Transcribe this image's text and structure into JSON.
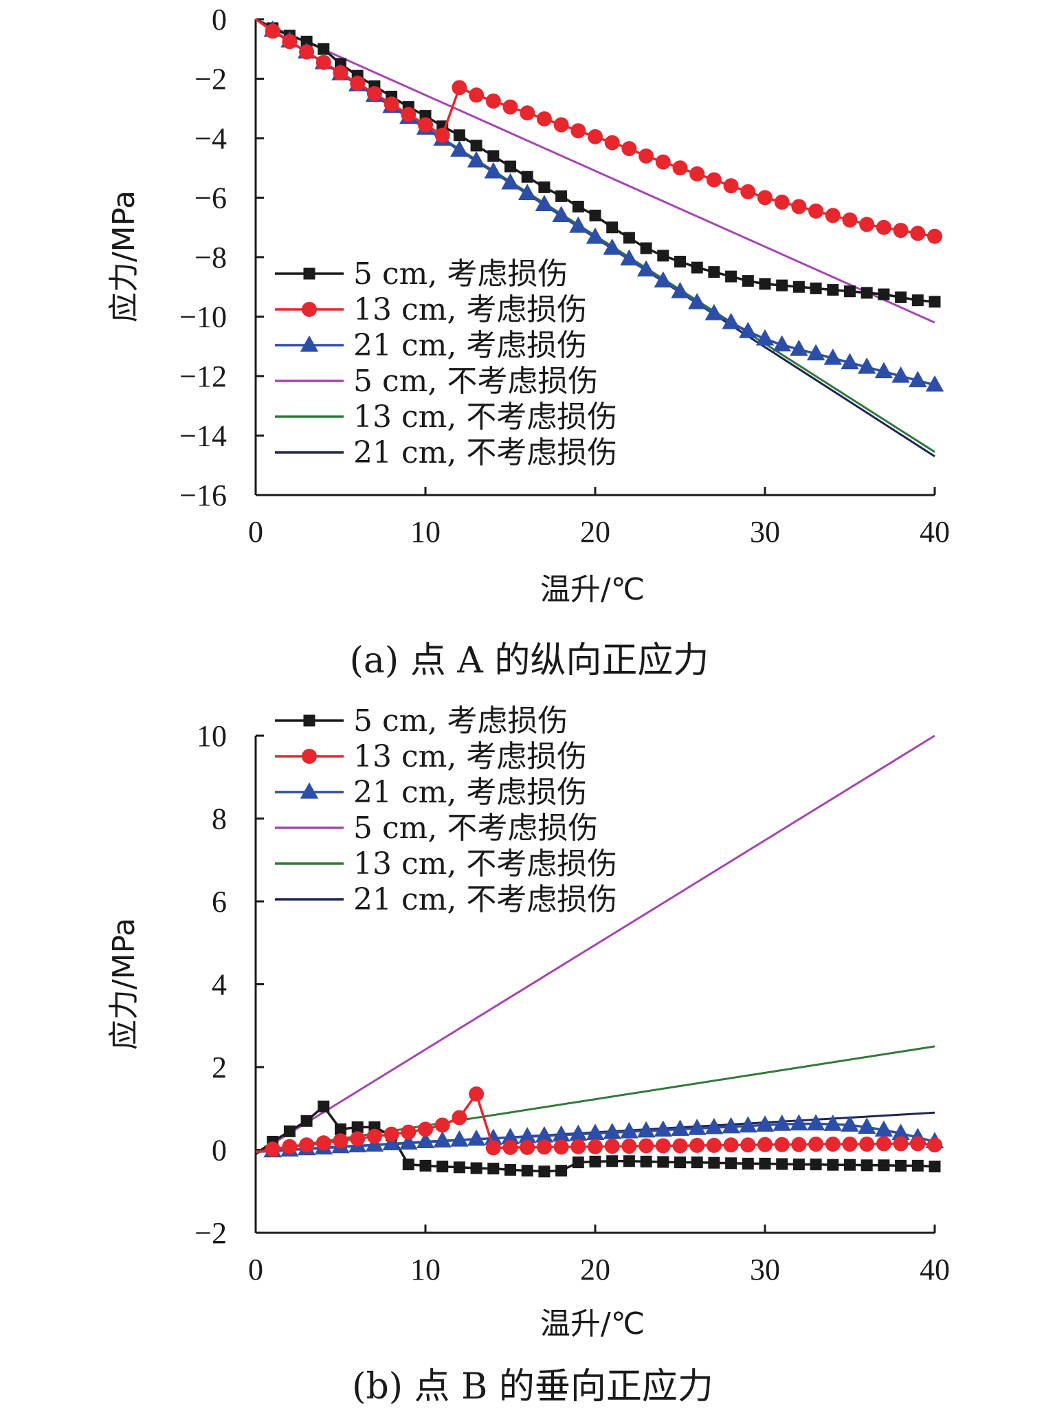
{
  "colors": {
    "s5_damage": "#1a1a1a",
    "s13_damage": "#e8262e",
    "s21_damage": "#2d4ea8",
    "s5_nodamage": "#a545b3",
    "s13_nodamage": "#2f7a3a",
    "s21_nodamage": "#1f2456"
  },
  "chart_data": [
    {
      "type": "line",
      "caption": "(a) 点 A 的纵向正应力",
      "xlabel": "温升/℃",
      "ylabel": "应力/MPa",
      "xlim": [
        0,
        40
      ],
      "ylim": [
        -16,
        0
      ],
      "xticks": [
        0,
        10,
        20,
        30,
        40
      ],
      "yticks": [
        0,
        -2,
        -4,
        -6,
        -8,
        -10,
        -12,
        -14,
        -16
      ],
      "xtick_labels": [
        "0",
        "10",
        "20",
        "30",
        "40"
      ],
      "ytick_labels": [
        "0",
        "−2",
        "−4",
        "−6",
        "−8",
        "−10",
        "−12",
        "−14",
        "−16"
      ],
      "legend_position": "bottom-left",
      "series": [
        {
          "name": "5 cm, 考虑损伤",
          "color_key": "s5_damage",
          "marker": "square",
          "x": [
            0,
            1,
            2,
            3,
            4,
            5,
            6,
            7,
            8,
            9,
            10,
            11,
            12,
            13,
            14,
            15,
            16,
            17,
            18,
            19,
            20,
            21,
            22,
            23,
            24,
            25,
            26,
            27,
            28,
            29,
            30,
            31,
            32,
            33,
            34,
            35,
            36,
            37,
            38,
            39,
            40
          ],
          "y": [
            0,
            -0.3,
            -0.55,
            -0.75,
            -1.0,
            -1.5,
            -1.9,
            -2.25,
            -2.6,
            -2.95,
            -3.25,
            -3.6,
            -3.9,
            -4.25,
            -4.6,
            -4.95,
            -5.3,
            -5.65,
            -5.95,
            -6.3,
            -6.6,
            -7.0,
            -7.35,
            -7.7,
            -7.95,
            -8.15,
            -8.35,
            -8.5,
            -8.65,
            -8.8,
            -8.9,
            -8.95,
            -9.0,
            -9.05,
            -9.1,
            -9.15,
            -9.2,
            -9.25,
            -9.35,
            -9.45,
            -9.5
          ]
        },
        {
          "name": "13 cm, 考虑损伤",
          "color_key": "s13_damage",
          "marker": "circle",
          "x": [
            0,
            1,
            2,
            3,
            4,
            5,
            6,
            7,
            8,
            9,
            10,
            11,
            12,
            13,
            14,
            15,
            16,
            17,
            18,
            19,
            20,
            21,
            22,
            23,
            24,
            25,
            26,
            27,
            28,
            29,
            30,
            31,
            32,
            33,
            34,
            35,
            36,
            37,
            38,
            39,
            40
          ],
          "y": [
            0,
            -0.4,
            -0.75,
            -1.1,
            -1.45,
            -1.8,
            -2.15,
            -2.5,
            -2.85,
            -3.2,
            -3.55,
            -3.9,
            -2.3,
            -2.55,
            -2.75,
            -2.95,
            -3.15,
            -3.35,
            -3.55,
            -3.75,
            -3.95,
            -4.15,
            -4.35,
            -4.6,
            -4.8,
            -5.0,
            -5.2,
            -5.4,
            -5.6,
            -5.8,
            -6.0,
            -6.15,
            -6.3,
            -6.45,
            -6.6,
            -6.75,
            -6.9,
            -7.0,
            -7.1,
            -7.2,
            -7.3
          ]
        },
        {
          "name": "21 cm, 考虑损伤",
          "color_key": "s21_damage",
          "marker": "triangle",
          "x": [
            0,
            1,
            2,
            3,
            4,
            5,
            6,
            7,
            8,
            9,
            10,
            11,
            12,
            13,
            14,
            15,
            16,
            17,
            18,
            19,
            20,
            21,
            22,
            23,
            24,
            25,
            26,
            27,
            28,
            29,
            30,
            31,
            32,
            33,
            34,
            35,
            36,
            37,
            38,
            39,
            40
          ],
          "y": [
            0,
            -0.37,
            -0.73,
            -1.1,
            -1.46,
            -1.83,
            -2.2,
            -2.56,
            -2.93,
            -3.3,
            -3.66,
            -4.03,
            -4.4,
            -4.76,
            -5.13,
            -5.5,
            -5.86,
            -6.23,
            -6.6,
            -6.96,
            -7.33,
            -7.7,
            -8.06,
            -8.43,
            -8.8,
            -9.16,
            -9.53,
            -9.9,
            -10.2,
            -10.5,
            -10.75,
            -10.95,
            -11.1,
            -11.25,
            -11.4,
            -11.55,
            -11.7,
            -11.85,
            -12.0,
            -12.15,
            -12.3
          ]
        },
        {
          "name": "5 cm, 不考虑损伤",
          "color_key": "s5_nodamage",
          "marker": "none",
          "x": [
            0,
            40
          ],
          "y": [
            0,
            -10.2
          ]
        },
        {
          "name": "13 cm, 不考虑损伤",
          "color_key": "s13_nodamage",
          "marker": "none",
          "x": [
            0,
            40
          ],
          "y": [
            0,
            -14.55
          ]
        },
        {
          "name": "21 cm, 不考虑损伤",
          "color_key": "s21_nodamage",
          "marker": "none",
          "x": [
            0,
            40
          ],
          "y": [
            0,
            -14.7
          ]
        }
      ]
    },
    {
      "type": "line",
      "caption": "(b) 点 B 的垂向正应力",
      "xlabel": "温升/℃",
      "ylabel": "应力/MPa",
      "xlim": [
        0,
        40
      ],
      "ylim": [
        -2,
        10
      ],
      "xticks": [
        0,
        10,
        20,
        30,
        40
      ],
      "yticks": [
        10,
        8,
        6,
        4,
        2,
        0,
        -2
      ],
      "xtick_labels": [
        "0",
        "10",
        "20",
        "30",
        "40"
      ],
      "ytick_labels": [
        "10",
        "8",
        "6",
        "4",
        "2",
        "0",
        "−2"
      ],
      "legend_position": "top-left",
      "series": [
        {
          "name": "5 cm, 考虑损伤",
          "color_key": "s5_damage",
          "marker": "square",
          "x": [
            0,
            1,
            2,
            3,
            4,
            5,
            6,
            7,
            8,
            9,
            10,
            11,
            12,
            13,
            14,
            15,
            16,
            17,
            18,
            19,
            20,
            21,
            22,
            23,
            24,
            25,
            26,
            27,
            28,
            29,
            30,
            31,
            32,
            33,
            34,
            35,
            36,
            37,
            38,
            39,
            40
          ],
          "y": [
            -0.1,
            0.2,
            0.45,
            0.7,
            1.05,
            0.5,
            0.55,
            0.55,
            0.35,
            -0.35,
            -0.38,
            -0.4,
            -0.42,
            -0.44,
            -0.45,
            -0.48,
            -0.5,
            -0.52,
            -0.5,
            -0.3,
            -0.28,
            -0.27,
            -0.27,
            -0.28,
            -0.29,
            -0.3,
            -0.3,
            -0.31,
            -0.32,
            -0.33,
            -0.33,
            -0.34,
            -0.35,
            -0.35,
            -0.36,
            -0.36,
            -0.37,
            -0.37,
            -0.38,
            -0.38,
            -0.4
          ]
        },
        {
          "name": "13 cm, 考虑损伤",
          "color_key": "s13_damage",
          "marker": "circle",
          "x": [
            0,
            1,
            2,
            3,
            4,
            5,
            6,
            7,
            8,
            9,
            10,
            11,
            12,
            13,
            14,
            15,
            16,
            17,
            18,
            19,
            20,
            21,
            22,
            23,
            24,
            25,
            26,
            27,
            28,
            29,
            30,
            31,
            32,
            33,
            34,
            35,
            36,
            37,
            38,
            39,
            40
          ],
          "y": [
            -0.05,
            0.02,
            0.08,
            0.12,
            0.17,
            0.22,
            0.27,
            0.33,
            0.38,
            0.43,
            0.5,
            0.6,
            0.78,
            1.35,
            0.05,
            0.06,
            0.06,
            0.07,
            0.07,
            0.08,
            0.08,
            0.09,
            0.09,
            0.1,
            0.1,
            0.1,
            0.11,
            0.11,
            0.12,
            0.12,
            0.13,
            0.13,
            0.13,
            0.14,
            0.14,
            0.14,
            0.14,
            0.15,
            0.15,
            0.15,
            0.12
          ]
        },
        {
          "name": "21 cm, 考虑损伤",
          "color_key": "s21_damage",
          "marker": "triangle",
          "x": [
            0,
            1,
            2,
            3,
            4,
            5,
            6,
            7,
            8,
            9,
            10,
            11,
            12,
            13,
            14,
            15,
            16,
            17,
            18,
            19,
            20,
            21,
            22,
            23,
            24,
            25,
            26,
            27,
            28,
            29,
            30,
            31,
            32,
            33,
            34,
            35,
            36,
            37,
            38,
            39,
            40
          ],
          "y": [
            -0.05,
            -0.02,
            0.0,
            0.03,
            0.05,
            0.08,
            0.1,
            0.12,
            0.15,
            0.17,
            0.2,
            0.22,
            0.24,
            0.26,
            0.28,
            0.3,
            0.32,
            0.34,
            0.36,
            0.38,
            0.4,
            0.42,
            0.44,
            0.46,
            0.48,
            0.5,
            0.52,
            0.54,
            0.56,
            0.58,
            0.6,
            0.62,
            0.63,
            0.63,
            0.62,
            0.6,
            0.55,
            0.48,
            0.4,
            0.3,
            0.2
          ]
        },
        {
          "name": "5 cm, 不考虑损伤",
          "color_key": "s5_nodamage",
          "marker": "none",
          "x": [
            0,
            40
          ],
          "y": [
            -0.1,
            10.0
          ]
        },
        {
          "name": "13 cm, 不考虑损伤",
          "color_key": "s13_nodamage",
          "marker": "none",
          "x": [
            0,
            40
          ],
          "y": [
            -0.05,
            2.5
          ]
        },
        {
          "name": "21 cm, 不考虑损伤",
          "color_key": "s21_nodamage",
          "marker": "none",
          "x": [
            0,
            40
          ],
          "y": [
            -0.05,
            0.9
          ]
        }
      ]
    }
  ]
}
